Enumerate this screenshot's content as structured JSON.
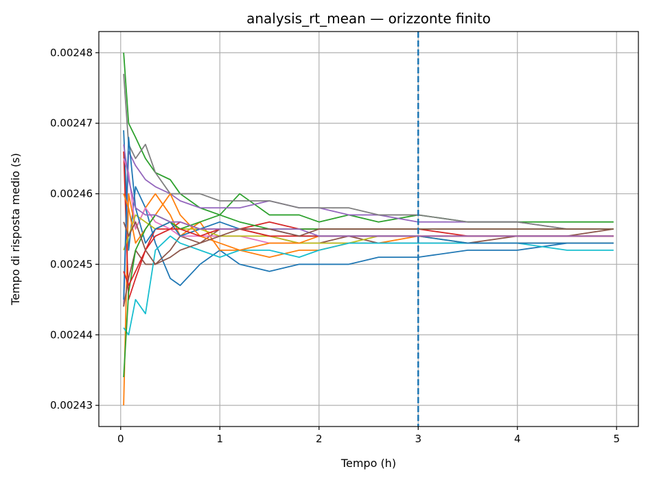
{
  "chart_data": {
    "type": "line",
    "title": "analysis_rt_mean — orizzonte finito",
    "xlabel": "Tempo (h)",
    "ylabel": "Tempo di risposta medio (s)",
    "xlim": [
      -0.22,
      5.22
    ],
    "ylim": [
      0.002427,
      0.002483
    ],
    "xticks": [
      0,
      1,
      2,
      3,
      4,
      5
    ],
    "xtick_labels": [
      "0",
      "1",
      "2",
      "3",
      "4",
      "5"
    ],
    "yticks": [
      0.00243,
      0.00244,
      0.00245,
      0.00246,
      0.00247,
      0.00248
    ],
    "ytick_labels": [
      "0.00243",
      "0.00244",
      "0.00245",
      "0.00246",
      "0.00247",
      "0.00248"
    ],
    "grid": true,
    "legend": "none",
    "reference_line": {
      "x": 3,
      "style": "dashed",
      "color": "#1f77b4"
    },
    "series": [
      {
        "color": "#1f77b4",
        "x": [
          0.03,
          0.08,
          0.15,
          0.25,
          0.35,
          0.5,
          0.6,
          0.8,
          1.0,
          1.2,
          1.5,
          1.8,
          2.0,
          2.3,
          2.6,
          3.0,
          3.5,
          4.0,
          4.5,
          4.97
        ],
        "y": [
          0.002469,
          0.002452,
          0.002461,
          0.002458,
          0.002453,
          0.002448,
          0.002447,
          0.00245,
          0.002452,
          0.00245,
          0.002449,
          0.00245,
          0.00245,
          0.00245,
          0.002451,
          0.002451,
          0.002452,
          0.002452,
          0.002453,
          0.002453
        ]
      },
      {
        "color": "#ff7f0e",
        "x": [
          0.03,
          0.08,
          0.15,
          0.25,
          0.35,
          0.5,
          0.6,
          0.8,
          1.0,
          1.2,
          1.5,
          1.8,
          2.0,
          2.3,
          2.6,
          3.0,
          3.5,
          4.0,
          4.5,
          4.97
        ],
        "y": [
          0.00243,
          0.00246,
          0.002455,
          0.002458,
          0.00246,
          0.002457,
          0.002454,
          0.002456,
          0.002452,
          0.002452,
          0.002451,
          0.002452,
          0.002452,
          0.002453,
          0.002453,
          0.002454,
          0.002454,
          0.002454,
          0.002454,
          0.002454
        ]
      },
      {
        "color": "#2ca02c",
        "x": [
          0.03,
          0.08,
          0.15,
          0.25,
          0.35,
          0.5,
          0.6,
          0.8,
          1.0,
          1.2,
          1.5,
          1.8,
          2.0,
          2.3,
          2.6,
          3.0,
          3.5,
          4.0,
          4.5,
          4.97
        ],
        "y": [
          0.00248,
          0.00247,
          0.002468,
          0.002465,
          0.002463,
          0.002462,
          0.00246,
          0.002458,
          0.002457,
          0.00246,
          0.002457,
          0.002457,
          0.002456,
          0.002457,
          0.002456,
          0.002457,
          0.002456,
          0.002456,
          0.002456,
          0.002456
        ]
      },
      {
        "color": "#d62728",
        "x": [
          0.03,
          0.08,
          0.15,
          0.25,
          0.35,
          0.5,
          0.6,
          0.8,
          1.0,
          1.2,
          1.5,
          1.8,
          2.0,
          2.3,
          2.6,
          3.0,
          3.5,
          4.0,
          4.5,
          4.97
        ],
        "y": [
          0.002466,
          0.002445,
          0.002448,
          0.002452,
          0.002455,
          0.002455,
          0.002456,
          0.002455,
          0.002455,
          0.002455,
          0.002456,
          0.002455,
          0.002455,
          0.002455,
          0.002455,
          0.002455,
          0.002454,
          0.002454,
          0.002454,
          0.002454
        ]
      },
      {
        "color": "#9467bd",
        "x": [
          0.03,
          0.08,
          0.15,
          0.25,
          0.35,
          0.5,
          0.6,
          0.8,
          1.0,
          1.2,
          1.5,
          1.8,
          2.0,
          2.3,
          2.6,
          3.0,
          3.5,
          4.0,
          4.5,
          4.97
        ],
        "y": [
          0.002444,
          0.002466,
          0.002464,
          0.002462,
          0.002461,
          0.00246,
          0.002459,
          0.002458,
          0.002458,
          0.002458,
          0.002459,
          0.002458,
          0.002458,
          0.002457,
          0.002457,
          0.002456,
          0.002456,
          0.002456,
          0.002455,
          0.002455
        ]
      },
      {
        "color": "#8c564b",
        "x": [
          0.03,
          0.08,
          0.15,
          0.25,
          0.35,
          0.5,
          0.6,
          0.8,
          1.0,
          1.2,
          1.5,
          1.8,
          2.0,
          2.3,
          2.6,
          3.0,
          3.5,
          4.0,
          4.5,
          4.97
        ],
        "y": [
          0.002444,
          0.002448,
          0.002452,
          0.00245,
          0.00245,
          0.002452,
          0.002454,
          0.002453,
          0.002455,
          0.002455,
          0.002454,
          0.002453,
          0.002453,
          0.002454,
          0.002453,
          0.002453,
          0.002453,
          0.002454,
          0.002454,
          0.002455
        ]
      },
      {
        "color": "#e377c2",
        "x": [
          0.03,
          0.08,
          0.15,
          0.25,
          0.35,
          0.5,
          0.6,
          0.8,
          1.0,
          1.2,
          1.5,
          1.8,
          2.0,
          2.3,
          2.6,
          3.0,
          3.5,
          4.0,
          4.5,
          4.97
        ],
        "y": [
          0.002465,
          0.002463,
          0.002455,
          0.002458,
          0.002456,
          0.002455,
          0.002454,
          0.002454,
          0.002454,
          0.002454,
          0.002453,
          0.002453,
          0.002453,
          0.002453,
          0.002453,
          0.002453,
          0.002453,
          0.002453,
          0.002453,
          0.002453
        ]
      },
      {
        "color": "#7f7f7f",
        "x": [
          0.03,
          0.08,
          0.15,
          0.25,
          0.35,
          0.5,
          0.6,
          0.8,
          1.0,
          1.2,
          1.5,
          1.8,
          2.0,
          2.3,
          2.6,
          3.0,
          3.5,
          4.0,
          4.5,
          4.97
        ],
        "y": [
          0.002477,
          0.002467,
          0.002465,
          0.002467,
          0.002463,
          0.00246,
          0.00246,
          0.00246,
          0.002459,
          0.002459,
          0.002459,
          0.002458,
          0.002458,
          0.002458,
          0.002457,
          0.002457,
          0.002456,
          0.002456,
          0.002455,
          0.002455
        ]
      },
      {
        "color": "#bcbd22",
        "x": [
          0.03,
          0.08,
          0.15,
          0.25,
          0.35,
          0.5,
          0.6,
          0.8,
          1.0,
          1.2,
          1.5,
          1.8,
          2.0,
          2.3,
          2.6,
          3.0,
          3.5,
          4.0,
          4.5,
          4.97
        ],
        "y": [
          0.002452,
          0.002454,
          0.002457,
          0.002456,
          0.002455,
          0.002456,
          0.002455,
          0.002455,
          0.002454,
          0.002454,
          0.002454,
          0.002453,
          0.002453,
          0.002453,
          0.002454,
          0.002454,
          0.002453,
          0.002453,
          0.002453,
          0.002453
        ]
      },
      {
        "color": "#17becf",
        "x": [
          0.03,
          0.08,
          0.15,
          0.25,
          0.35,
          0.5,
          0.6,
          0.8,
          1.0,
          1.2,
          1.5,
          1.8,
          2.0,
          2.3,
          2.6,
          3.0,
          3.5,
          4.0,
          4.5,
          4.97
        ],
        "y": [
          0.002441,
          0.00244,
          0.002445,
          0.002443,
          0.002452,
          0.002454,
          0.002453,
          0.002452,
          0.002451,
          0.002452,
          0.002452,
          0.002451,
          0.002452,
          0.002453,
          0.002453,
          0.002453,
          0.002453,
          0.002453,
          0.002452,
          0.002452
        ]
      },
      {
        "color": "#1f77b4",
        "x": [
          0.03,
          0.08,
          0.15,
          0.25,
          0.35,
          0.5,
          0.6,
          0.8,
          1.0,
          1.2,
          1.5,
          1.8,
          2.0,
          2.3,
          2.6,
          3.0,
          3.5,
          4.0,
          4.5,
          4.97
        ],
        "y": [
          0.002445,
          0.002468,
          0.002458,
          0.002453,
          0.002455,
          0.002456,
          0.002454,
          0.002455,
          0.002456,
          0.002455,
          0.002455,
          0.002454,
          0.002454,
          0.002454,
          0.002454,
          0.002454,
          0.002453,
          0.002453,
          0.002453,
          0.002453
        ]
      },
      {
        "color": "#ff7f0e",
        "x": [
          0.03,
          0.08,
          0.15,
          0.25,
          0.35,
          0.5,
          0.6,
          0.8,
          1.0,
          1.2,
          1.5,
          1.8,
          2.0,
          2.3,
          2.6,
          3.0,
          3.5,
          4.0,
          4.5,
          4.97
        ],
        "y": [
          0.00246,
          0.002458,
          0.002453,
          0.002455,
          0.002457,
          0.00246,
          0.002457,
          0.002454,
          0.002453,
          0.002452,
          0.002453,
          0.002453,
          0.002454,
          0.002454,
          0.002454,
          0.002454,
          0.002454,
          0.002454,
          0.002454,
          0.002454
        ]
      },
      {
        "color": "#2ca02c",
        "x": [
          0.03,
          0.08,
          0.15,
          0.25,
          0.35,
          0.5,
          0.6,
          0.8,
          1.0,
          1.2,
          1.5,
          1.8,
          2.0,
          2.3,
          2.6,
          3.0,
          3.5,
          4.0,
          4.5,
          4.97
        ],
        "y": [
          0.002434,
          0.002446,
          0.002452,
          0.002455,
          0.002457,
          0.002456,
          0.002455,
          0.002456,
          0.002457,
          0.002456,
          0.002455,
          0.002455,
          0.002455,
          0.002455,
          0.002455,
          0.002455,
          0.002455,
          0.002455,
          0.002455,
          0.002455
        ]
      },
      {
        "color": "#d62728",
        "x": [
          0.03,
          0.08,
          0.15,
          0.25,
          0.35,
          0.5,
          0.6,
          0.8,
          1.0,
          1.2,
          1.5,
          1.8,
          2.0,
          2.3,
          2.6,
          3.0,
          3.5,
          4.0,
          4.5,
          4.97
        ],
        "y": [
          0.002449,
          0.002447,
          0.002449,
          0.002452,
          0.002454,
          0.002455,
          0.002455,
          0.002454,
          0.002455,
          0.002455,
          0.002454,
          0.002454,
          0.002454,
          0.002454,
          0.002454,
          0.002454,
          0.002454,
          0.002454,
          0.002454,
          0.002454
        ]
      },
      {
        "color": "#9467bd",
        "x": [
          0.03,
          0.08,
          0.15,
          0.25,
          0.35,
          0.5,
          0.6,
          0.8,
          1.0,
          1.2,
          1.5,
          1.8,
          2.0,
          2.3,
          2.6,
          3.0,
          3.5,
          4.0,
          4.5,
          4.97
        ],
        "y": [
          0.002467,
          0.002462,
          0.002458,
          0.002457,
          0.002457,
          0.002456,
          0.002456,
          0.002455,
          0.002455,
          0.002455,
          0.002455,
          0.002455,
          0.002454,
          0.002454,
          0.002454,
          0.002454,
          0.002454,
          0.002454,
          0.002454,
          0.002454
        ]
      },
      {
        "color": "#8c564b",
        "x": [
          0.03,
          0.08,
          0.15,
          0.25,
          0.35,
          0.5,
          0.6,
          0.8,
          1.0,
          1.2,
          1.5,
          1.8,
          2.0,
          2.3,
          2.6,
          3.0,
          3.5,
          4.0,
          4.5,
          4.97
        ],
        "y": [
          0.002456,
          0.002454,
          0.002456,
          0.002452,
          0.00245,
          0.002451,
          0.002452,
          0.002453,
          0.002454,
          0.002455,
          0.002455,
          0.002454,
          0.002455,
          0.002455,
          0.002455,
          0.002455,
          0.002455,
          0.002455,
          0.002455,
          0.002455
        ]
      }
    ]
  }
}
